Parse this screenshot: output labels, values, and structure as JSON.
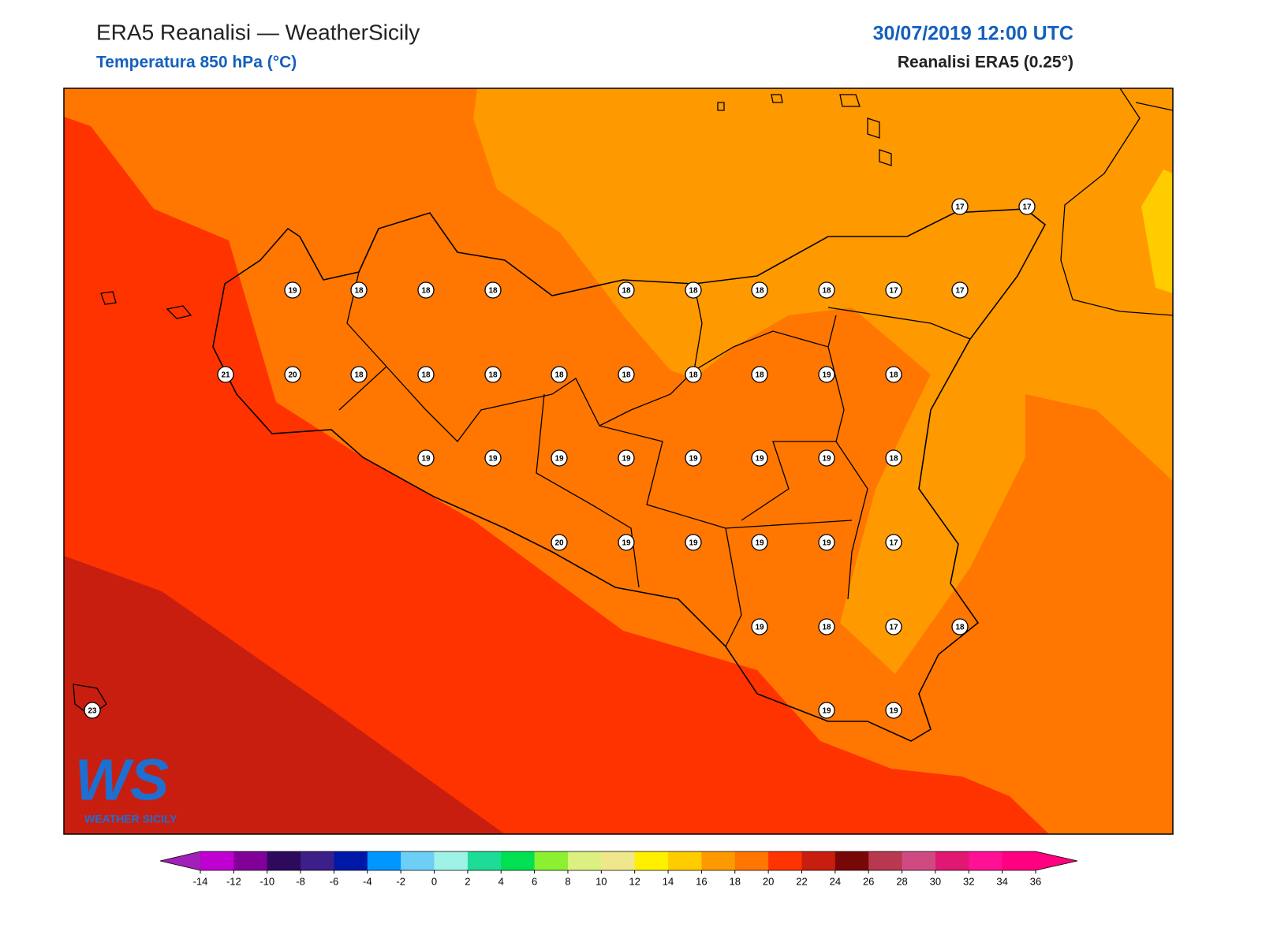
{
  "header": {
    "title": "ERA5 Reanalisi — WeatherSicily",
    "subtitle": "Temperatura 850 hPa (°C)",
    "datetime": "30/07/2019 12:00 UTC",
    "source": "Reanalisi ERA5 (0.25°)"
  },
  "logo": {
    "letters": "WS",
    "name": "WEATHER SICILY"
  },
  "stations": [
    17,
    17,
    19,
    18,
    18,
    18,
    18,
    18,
    18,
    18,
    17,
    17,
    21,
    20,
    18,
    18,
    18,
    18,
    18,
    18,
    18,
    19,
    18,
    19,
    19,
    19,
    19,
    19,
    19,
    19,
    18,
    20,
    19,
    19,
    19,
    19,
    17,
    19,
    18,
    17,
    18,
    23,
    19,
    19
  ],
  "colorbar": {
    "ticks": [
      -14,
      -12,
      -10,
      -8,
      -6,
      -4,
      -2,
      0,
      2,
      4,
      6,
      8,
      10,
      12,
      14,
      16,
      18,
      20,
      22,
      24,
      26,
      28,
      30,
      32,
      34,
      36
    ],
    "colors": [
      "#c000d0",
      "#800098",
      "#2e0a5c",
      "#3c1f88",
      "#0018a8",
      "#0096ff",
      "#6ecff6",
      "#9ff2e6",
      "#1cdc98",
      "#00e050",
      "#8cf032",
      "#dcf082",
      "#f0e68c",
      "#fff000",
      "#ffcc00",
      "#ff9900",
      "#ff7700",
      "#ff3300",
      "#c81e10",
      "#780808",
      "#b83850",
      "#d04a82",
      "#e01872",
      "#ff1094",
      "#ff0080"
    ],
    "extend_colors": [
      "#a020b8",
      "#ff0080"
    ]
  }
}
